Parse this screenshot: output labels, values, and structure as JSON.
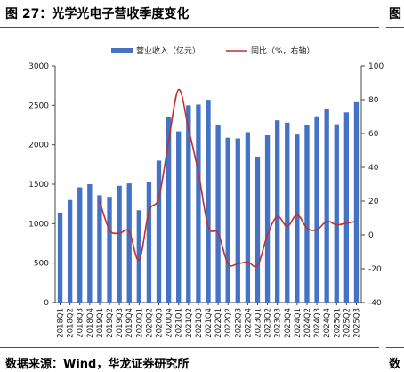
{
  "figure": {
    "title": "图 27：光学光电子营收季度变化",
    "right_title": "图",
    "source": "数据来源：Wind，华龙证券研究所",
    "source_right": "数"
  },
  "colors": {
    "bar": "#4472c4",
    "line": "#c0302e",
    "accent": "#b41e2a"
  },
  "chart_data": {
    "type": "bar",
    "legend_position": "top",
    "categories": [
      "2018Q1",
      "2018Q2",
      "2018Q3",
      "2018Q4",
      "2019Q1",
      "2019Q2",
      "2019Q3",
      "2019Q4",
      "2020Q1",
      "2020Q2",
      "2020Q3",
      "2020Q4",
      "2021Q1",
      "2021Q2",
      "2021Q3",
      "2021Q4",
      "2022Q1",
      "2022Q2",
      "2022Q3",
      "2022Q4",
      "2023Q1",
      "2023Q2",
      "2023Q3",
      "2023Q4",
      "2024Q1",
      "2024Q2",
      "2024Q3",
      "2024Q4",
      "2025Q1",
      "2025Q2",
      "2025Q3"
    ],
    "series": [
      {
        "name": "营业收入（亿元）",
        "type": "bar",
        "axis": "left",
        "values": [
          1140,
          1300,
          1460,
          1500,
          1360,
          1340,
          1480,
          1510,
          1170,
          1530,
          1800,
          2350,
          2170,
          2500,
          2510,
          2570,
          2250,
          2090,
          2080,
          2160,
          1850,
          2120,
          2310,
          2280,
          2130,
          2250,
          2360,
          2450,
          2260,
          2410,
          2540
        ]
      },
      {
        "name": "同比（%，右轴）",
        "type": "line",
        "axis": "right",
        "values": [
          null,
          null,
          null,
          null,
          20,
          3,
          1,
          2,
          -15,
          14,
          22,
          56,
          86,
          63,
          37,
          5,
          1,
          -17,
          -17,
          -16,
          -18,
          0,
          11,
          5,
          12,
          4,
          3,
          8,
          6,
          7,
          8
        ]
      }
    ],
    "left_axis": {
      "ylim": [
        0,
        3000
      ],
      "ticks": [
        0,
        500,
        1000,
        1500,
        2000,
        2500,
        3000
      ]
    },
    "right_axis": {
      "ylim": [
        -40,
        100
      ],
      "ticks": [
        -40,
        -20,
        0,
        20,
        40,
        60,
        80,
        100
      ]
    }
  }
}
